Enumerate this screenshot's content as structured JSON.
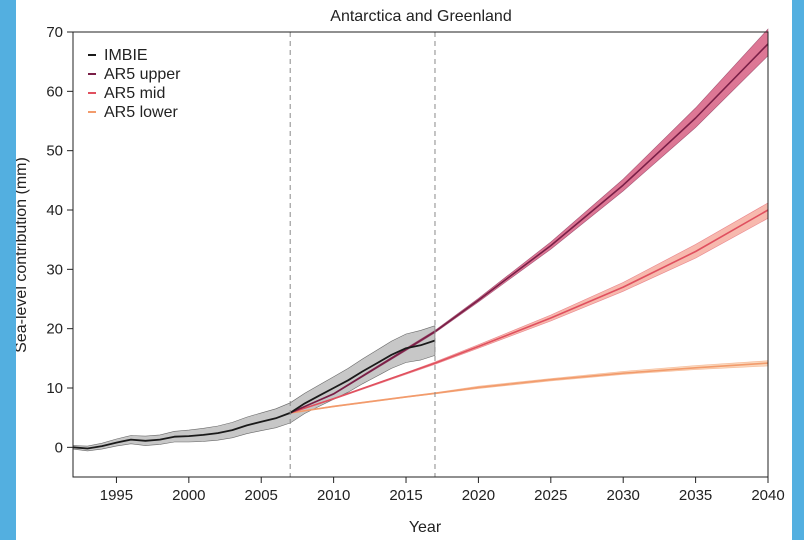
{
  "page": {
    "background": "#53afe0",
    "panel_background": "#ffffff"
  },
  "chart_data": {
    "type": "line",
    "title": "Antarctica and Greenland",
    "xlabel": "Year",
    "ylabel": "Sea-level contribution (mm)",
    "xlim": [
      1992,
      2040
    ],
    "ylim": [
      -5,
      70
    ],
    "xticks": [
      1995,
      2000,
      2005,
      2010,
      2015,
      2020,
      2025,
      2030,
      2035,
      2040
    ],
    "yticks": [
      0,
      10,
      20,
      30,
      40,
      50,
      60,
      70
    ],
    "vlines": [
      2007,
      2017
    ],
    "legend_position": "top-left",
    "series": [
      {
        "name": "IMBIE",
        "color": "#1a1a1a",
        "band_color": "#bdbdbd",
        "x": [
          1992,
          1993,
          1994,
          1995,
          1996,
          1997,
          1998,
          1999,
          2000,
          2001,
          2002,
          2003,
          2004,
          2005,
          2006,
          2007,
          2008,
          2009,
          2010,
          2011,
          2012,
          2013,
          2014,
          2015,
          2016,
          2017
        ],
        "y": [
          0,
          -0.2,
          0.2,
          0.8,
          1.3,
          1.1,
          1.3,
          1.8,
          1.9,
          2.1,
          2.4,
          2.9,
          3.7,
          4.3,
          4.9,
          5.8,
          7.4,
          8.7,
          10.0,
          11.3,
          12.8,
          14.2,
          15.6,
          16.7,
          17.2,
          18.0
        ],
        "y_upper": [
          0.3,
          0.2,
          0.7,
          1.4,
          2.0,
          1.9,
          2.1,
          2.7,
          2.9,
          3.2,
          3.6,
          4.2,
          5.1,
          5.8,
          6.5,
          7.5,
          9.1,
          10.5,
          11.9,
          13.3,
          14.9,
          16.4,
          17.9,
          19.1,
          19.7,
          20.5
        ],
        "y_lower": [
          -0.3,
          -0.6,
          -0.3,
          0.2,
          0.6,
          0.3,
          0.5,
          0.9,
          0.9,
          1.0,
          1.2,
          1.6,
          2.3,
          2.8,
          3.3,
          4.1,
          5.7,
          6.9,
          8.1,
          9.3,
          10.7,
          12.0,
          13.3,
          14.3,
          14.7,
          15.5
        ]
      },
      {
        "name": "AR5 upper",
        "color": "#7a1f47",
        "band_color": "#d24a72",
        "x": [
          2007,
          2010,
          2015,
          2017,
          2020,
          2025,
          2030,
          2035,
          2040
        ],
        "y": [
          5.8,
          9.0,
          16.5,
          19.5,
          24.8,
          34.0,
          44.2,
          55.5,
          68.0
        ],
        "y_upper": [
          5.8,
          9.1,
          16.7,
          19.7,
          25.1,
          34.6,
          45.2,
          57.2,
          70.5
        ],
        "y_lower": [
          5.8,
          8.9,
          16.3,
          19.3,
          24.5,
          33.4,
          43.2,
          53.9,
          66.0
        ]
      },
      {
        "name": "AR5 mid",
        "color": "#e0505f",
        "band_color": "#f4a193",
        "x": [
          2007,
          2010,
          2015,
          2017,
          2020,
          2025,
          2030,
          2035,
          2040
        ],
        "y": [
          5.8,
          8.2,
          12.5,
          14.2,
          17.0,
          21.8,
          27.0,
          33.0,
          40.0
        ],
        "y_upper": [
          5.8,
          8.3,
          12.6,
          14.4,
          17.3,
          22.3,
          27.8,
          34.2,
          41.2
        ],
        "y_lower": [
          5.8,
          8.1,
          12.3,
          14.0,
          16.7,
          21.3,
          26.3,
          31.9,
          38.6
        ]
      },
      {
        "name": "AR5 lower",
        "color": "#f29b6c",
        "band_color": "#f8c9a5",
        "x": [
          2007,
          2010,
          2015,
          2017,
          2020,
          2025,
          2030,
          2035,
          2040
        ],
        "y": [
          5.8,
          6.9,
          8.5,
          9.1,
          10.1,
          11.4,
          12.5,
          13.4,
          14.2
        ],
        "y_upper": [
          5.8,
          7.0,
          8.6,
          9.2,
          10.3,
          11.6,
          12.8,
          13.8,
          14.6
        ],
        "y_lower": [
          5.8,
          6.8,
          8.4,
          9.0,
          9.9,
          11.2,
          12.3,
          13.1,
          13.7
        ]
      }
    ]
  }
}
